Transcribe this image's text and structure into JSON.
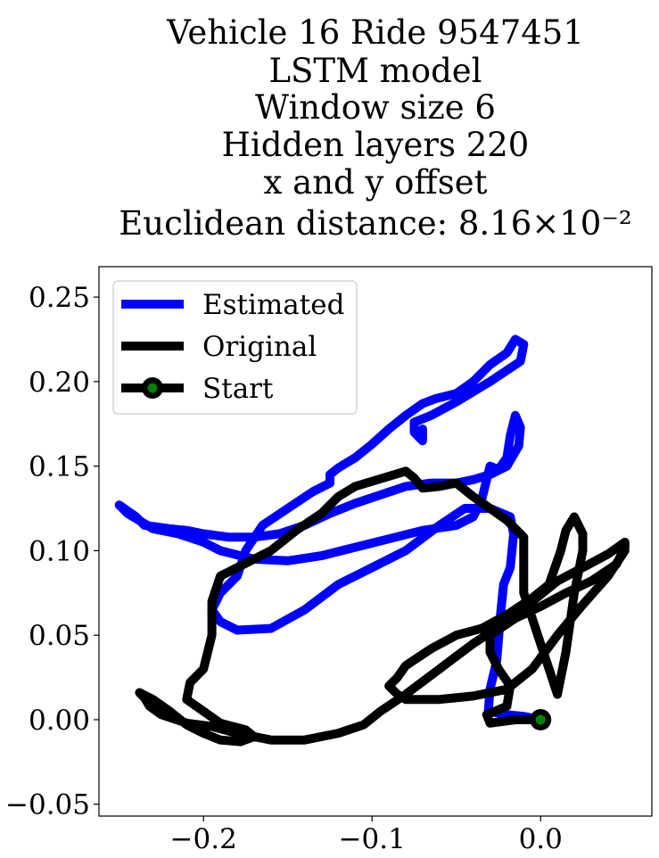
{
  "chart_data": {
    "type": "line",
    "title_lines": [
      "Vehicle 16 Ride 9547451",
      "LSTM model",
      "Window size 6",
      "Hidden layers 220",
      "x and y offset",
      "Euclidean distance: 8.16×10⁻²"
    ],
    "xlabel": "",
    "ylabel": "",
    "xlim": [
      -0.262,
      0.066
    ],
    "ylim": [
      -0.057,
      0.268
    ],
    "xticks": [
      {
        "value": -0.2,
        "label": "−0.2"
      },
      {
        "value": -0.1,
        "label": "−0.1"
      },
      {
        "value": 0.0,
        "label": "0.0"
      }
    ],
    "yticks": [
      {
        "value": -0.05,
        "label": "−0.05"
      },
      {
        "value": 0.0,
        "label": "0.00"
      },
      {
        "value": 0.05,
        "label": "0.05"
      },
      {
        "value": 0.1,
        "label": "0.10"
      },
      {
        "value": 0.15,
        "label": "0.15"
      },
      {
        "value": 0.2,
        "label": "0.20"
      },
      {
        "value": 0.25,
        "label": "0.25"
      }
    ],
    "grid": false,
    "legend_position": "top-left",
    "legend": [
      {
        "label": "Estimated",
        "color": "#0000ff",
        "marker": false
      },
      {
        "label": "Original",
        "color": "#000000",
        "marker": false
      },
      {
        "label": "Start",
        "color": "#000000",
        "marker": true,
        "marker_fill": "#008000"
      }
    ],
    "series": [
      {
        "name": "Estimated",
        "color": "#0000ff",
        "points": [
          [
            0.0,
            0.0
          ],
          [
            -0.01,
            0.002
          ],
          [
            -0.02,
            0.003
          ],
          [
            -0.031,
            0.005
          ],
          [
            -0.03,
            0.018
          ],
          [
            -0.026,
            0.035
          ],
          [
            -0.024,
            0.06
          ],
          [
            -0.022,
            0.08
          ],
          [
            -0.018,
            0.09
          ],
          [
            -0.016,
            0.11
          ],
          [
            -0.018,
            0.12
          ],
          [
            -0.03,
            0.125
          ],
          [
            -0.045,
            0.125
          ],
          [
            -0.06,
            0.115
          ],
          [
            -0.08,
            0.1
          ],
          [
            -0.1,
            0.09
          ],
          [
            -0.12,
            0.08
          ],
          [
            -0.14,
            0.065
          ],
          [
            -0.16,
            0.054
          ],
          [
            -0.18,
            0.053
          ],
          [
            -0.19,
            0.058
          ],
          [
            -0.195,
            0.065
          ],
          [
            -0.19,
            0.075
          ],
          [
            -0.18,
            0.085
          ],
          [
            -0.175,
            0.1
          ],
          [
            -0.165,
            0.115
          ],
          [
            -0.15,
            0.125
          ],
          [
            -0.135,
            0.135
          ],
          [
            -0.125,
            0.14
          ],
          [
            -0.125,
            0.145
          ],
          [
            -0.12,
            0.149
          ],
          [
            -0.11,
            0.155
          ],
          [
            -0.1,
            0.163
          ],
          [
            -0.09,
            0.172
          ],
          [
            -0.08,
            0.18
          ],
          [
            -0.07,
            0.187
          ],
          [
            -0.062,
            0.19
          ],
          [
            -0.05,
            0.193
          ],
          [
            -0.04,
            0.2
          ],
          [
            -0.03,
            0.21
          ],
          [
            -0.02,
            0.217
          ],
          [
            -0.015,
            0.225
          ],
          [
            -0.01,
            0.222
          ],
          [
            -0.012,
            0.212
          ],
          [
            -0.03,
            0.2
          ],
          [
            -0.05,
            0.188
          ],
          [
            -0.065,
            0.18
          ],
          [
            -0.075,
            0.176
          ],
          [
            -0.075,
            0.17
          ],
          [
            -0.07,
            0.165
          ],
          [
            -0.07,
            0.172
          ]
        ]
      },
      {
        "name": "Estimated",
        "color": "#0000ff",
        "points": [
          [
            -0.25,
            0.127
          ],
          [
            -0.24,
            0.12
          ],
          [
            -0.235,
            0.115
          ],
          [
            -0.22,
            0.113
          ],
          [
            -0.21,
            0.112
          ],
          [
            -0.2,
            0.11
          ],
          [
            -0.185,
            0.108
          ],
          [
            -0.17,
            0.108
          ],
          [
            -0.155,
            0.11
          ],
          [
            -0.14,
            0.115
          ],
          [
            -0.125,
            0.122
          ],
          [
            -0.11,
            0.128
          ],
          [
            -0.095,
            0.133
          ],
          [
            -0.08,
            0.138
          ],
          [
            -0.065,
            0.14
          ],
          [
            -0.05,
            0.14
          ],
          [
            -0.04,
            0.142
          ],
          [
            -0.03,
            0.145
          ],
          [
            -0.02,
            0.15
          ],
          [
            -0.013,
            0.162
          ],
          [
            -0.012,
            0.173
          ],
          [
            -0.015,
            0.18
          ],
          [
            -0.018,
            0.168
          ],
          [
            -0.02,
            0.155
          ],
          [
            -0.025,
            0.148
          ],
          [
            -0.03,
            0.15
          ],
          [
            -0.035,
            0.13
          ],
          [
            -0.04,
            0.12
          ],
          [
            -0.05,
            0.115
          ],
          [
            -0.07,
            0.112
          ],
          [
            -0.09,
            0.107
          ],
          [
            -0.11,
            0.102
          ],
          [
            -0.13,
            0.097
          ],
          [
            -0.15,
            0.094
          ],
          [
            -0.17,
            0.095
          ],
          [
            -0.19,
            0.1
          ],
          [
            -0.2,
            0.105
          ],
          [
            -0.215,
            0.11
          ],
          [
            -0.23,
            0.113
          ],
          [
            -0.245,
            0.122
          ],
          [
            -0.25,
            0.127
          ]
        ]
      },
      {
        "name": "Original",
        "color": "#000000",
        "points": [
          [
            0.0,
            0.0
          ],
          [
            -0.015,
            0.0
          ],
          [
            -0.03,
            -0.002
          ],
          [
            -0.032,
            0.003
          ],
          [
            -0.02,
            0.008
          ],
          [
            -0.018,
            0.02
          ],
          [
            -0.025,
            0.03
          ],
          [
            -0.03,
            0.04
          ],
          [
            -0.03,
            0.05
          ],
          [
            -0.015,
            0.06
          ],
          [
            0.0,
            0.067
          ],
          [
            0.015,
            0.075
          ],
          [
            0.03,
            0.082
          ],
          [
            0.045,
            0.092
          ],
          [
            0.05,
            0.102
          ],
          [
            0.05,
            0.105
          ],
          [
            0.04,
            0.098
          ],
          [
            0.025,
            0.09
          ],
          [
            0.01,
            0.082
          ],
          [
            -0.005,
            0.07
          ],
          [
            -0.02,
            0.058
          ],
          [
            -0.04,
            0.045
          ],
          [
            -0.06,
            0.03
          ],
          [
            -0.08,
            0.015
          ],
          [
            -0.095,
            0.005
          ],
          [
            -0.105,
            -0.003
          ],
          [
            -0.12,
            -0.008
          ],
          [
            -0.14,
            -0.012
          ],
          [
            -0.16,
            -0.012
          ],
          [
            -0.18,
            -0.008
          ],
          [
            -0.195,
            -0.004
          ],
          [
            -0.21,
            -0.002
          ],
          [
            -0.225,
            0.003
          ],
          [
            -0.232,
            0.008
          ],
          [
            -0.235,
            0.013
          ],
          [
            -0.238,
            0.016
          ],
          [
            -0.23,
            0.012
          ],
          [
            -0.22,
            0.005
          ],
          [
            -0.21,
            -0.003
          ],
          [
            -0.2,
            -0.008
          ],
          [
            -0.19,
            -0.012
          ],
          [
            -0.178,
            -0.013
          ],
          [
            -0.17,
            -0.01
          ],
          [
            -0.175,
            -0.006
          ],
          [
            -0.19,
            -0.002
          ],
          [
            -0.2,
            0.005
          ],
          [
            -0.21,
            0.012
          ],
          [
            -0.208,
            0.022
          ],
          [
            -0.2,
            0.03
          ],
          [
            -0.195,
            0.05
          ],
          [
            -0.195,
            0.07
          ],
          [
            -0.19,
            0.085
          ],
          [
            -0.18,
            0.09
          ],
          [
            -0.16,
            0.1
          ],
          [
            -0.145,
            0.112
          ],
          [
            -0.13,
            0.122
          ],
          [
            -0.12,
            0.132
          ],
          [
            -0.11,
            0.138
          ],
          [
            -0.09,
            0.144
          ],
          [
            -0.08,
            0.147
          ],
          [
            -0.075,
            0.143
          ],
          [
            -0.07,
            0.137
          ],
          [
            -0.06,
            0.138
          ],
          [
            -0.05,
            0.14
          ],
          [
            -0.04,
            0.132
          ],
          [
            -0.03,
            0.125
          ],
          [
            -0.02,
            0.118
          ],
          [
            -0.01,
            0.108
          ],
          [
            -0.01,
            0.09
          ],
          [
            -0.01,
            0.075
          ],
          [
            -0.005,
            0.06
          ],
          [
            0.0,
            0.045
          ],
          [
            0.005,
            0.03
          ],
          [
            0.01,
            0.015
          ],
          [
            0.015,
            0.04
          ],
          [
            0.02,
            0.075
          ],
          [
            0.025,
            0.1
          ],
          [
            0.025,
            0.11
          ],
          [
            0.02,
            0.12
          ],
          [
            0.015,
            0.112
          ],
          [
            0.012,
            0.1
          ],
          [
            0.005,
            0.08
          ],
          [
            -0.005,
            0.072
          ],
          [
            -0.02,
            0.062
          ],
          [
            -0.035,
            0.054
          ],
          [
            -0.05,
            0.05
          ],
          [
            -0.065,
            0.042
          ],
          [
            -0.08,
            0.032
          ],
          [
            -0.085,
            0.025
          ],
          [
            -0.09,
            0.02
          ],
          [
            -0.085,
            0.015
          ],
          [
            -0.08,
            0.012
          ],
          [
            -0.06,
            0.012
          ],
          [
            -0.04,
            0.014
          ],
          [
            -0.02,
            0.018
          ],
          [
            -0.005,
            0.03
          ],
          [
            0.01,
            0.05
          ],
          [
            0.025,
            0.068
          ],
          [
            0.04,
            0.085
          ],
          [
            0.05,
            0.1
          ]
        ]
      }
    ],
    "start_point": {
      "name": "Start",
      "x": 0.0,
      "y": 0.0,
      "color": "#000000",
      "fill": "#008000"
    }
  }
}
